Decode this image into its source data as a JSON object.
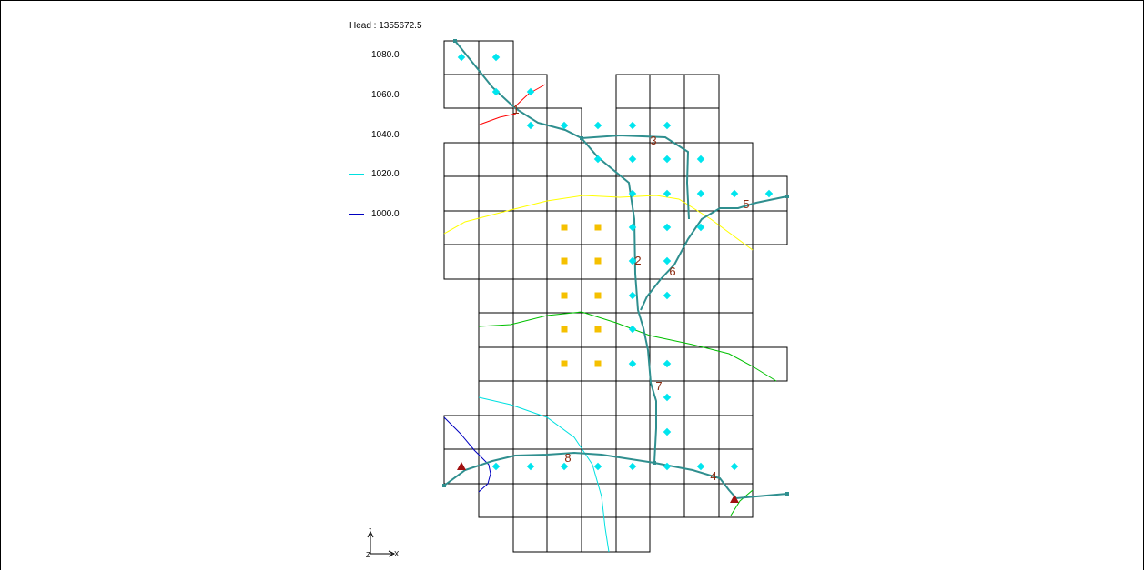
{
  "viewport": {
    "legend": {
      "title": "Head : 1355672.5",
      "entries": [
        {
          "label": "1080.0",
          "color": "#ff0000"
        },
        {
          "label": "1060.0",
          "color": "#ffff00"
        },
        {
          "label": "1040.0",
          "color": "#00c000"
        },
        {
          "label": "1020.0",
          "color": "#00e0e0"
        },
        {
          "label": "1000.0",
          "color": "#0000c0"
        }
      ]
    },
    "reach_labels": [
      "1",
      "2",
      "3",
      "4",
      "5",
      "6",
      "7",
      "8"
    ],
    "axis": {
      "y": "Y",
      "z": "Z",
      "x": "X"
    },
    "colors": {
      "grid": "#000000",
      "stream": "#2f8f8f",
      "well_marker": "#00e5ee",
      "drain_marker": "#f5c000",
      "spring_marker": "#a01010",
      "reach_label": "#8b2a10"
    }
  }
}
